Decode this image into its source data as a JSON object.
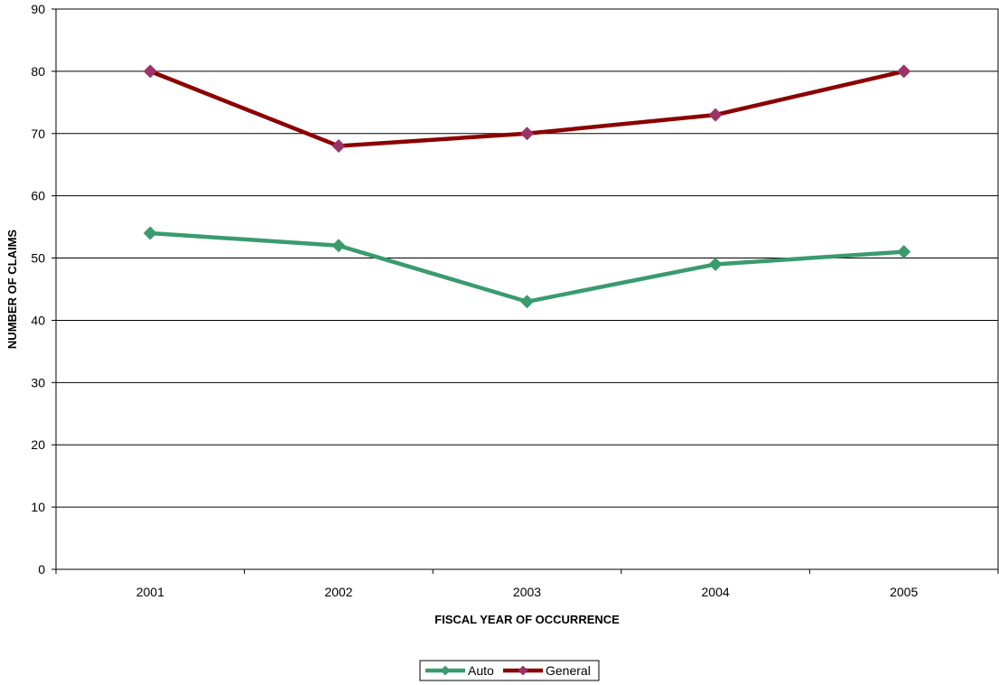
{
  "chart_data": {
    "type": "line",
    "title": "",
    "xlabel": "FISCAL YEAR OF OCCURRENCE",
    "ylabel": "NUMBER OF CLAIMS",
    "categories": [
      "2001",
      "2002",
      "2003",
      "2004",
      "2005"
    ],
    "ylim": [
      0,
      90
    ],
    "yticks": [
      0,
      10,
      20,
      30,
      40,
      50,
      60,
      70,
      80,
      90
    ],
    "grid": "horizontal",
    "legend_position": "bottom",
    "series": [
      {
        "name": "Auto",
        "values": [
          54,
          52,
          43,
          49,
          51
        ],
        "line_color": "#3A9B6E",
        "marker_color": "#3A9B6E"
      },
      {
        "name": "General",
        "values": [
          80,
          68,
          70,
          73,
          80
        ],
        "line_color": "#8B0000",
        "marker_color": "#9B3366"
      }
    ]
  }
}
